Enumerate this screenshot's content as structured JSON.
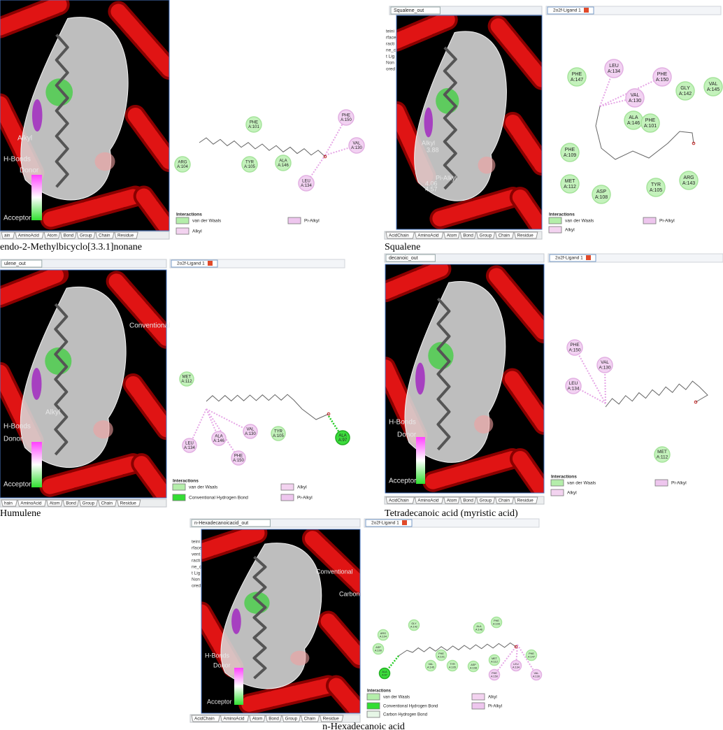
{
  "panels": [
    {
      "caption": "endo-2-Methylbicyclo[3.3.1]nonane",
      "view_labels": [
        "Alkyl",
        "H-Bonds",
        "Donor",
        "Acceptor"
      ],
      "bottom_tabs": [
        "ain",
        "AminoAcid",
        "Atom",
        "Bond",
        "Group",
        "Chain",
        "Residue"
      ],
      "residues": [
        {
          "name": "PHE",
          "id": "A:101",
          "kind": "vdw"
        },
        {
          "name": "PHE",
          "id": "A:150",
          "kind": "alkyl"
        },
        {
          "name": "VAL",
          "id": "A:130",
          "kind": "alkyl"
        },
        {
          "name": "ARG",
          "id": "A:104",
          "kind": "vdw"
        },
        {
          "name": "TYR",
          "id": "A:105",
          "kind": "vdw"
        },
        {
          "name": "ALA",
          "id": "A:146",
          "kind": "vdw"
        },
        {
          "name": "LEU",
          "id": "A:134",
          "kind": "alkyl"
        }
      ],
      "legend_title": "Interactions",
      "legend": [
        {
          "label": "van der Waals",
          "kind": "vdw"
        },
        {
          "label": "Pi-Alkyl",
          "kind": "pialkyl"
        },
        {
          "label": "Alkyl",
          "kind": "alkyl"
        }
      ]
    },
    {
      "caption": "Squalene",
      "view_tab": "Squalene_out",
      "ligand_tab": "2o2f-Ligand 1",
      "side_text": [
        "teini",
        "rface",
        "racti",
        "ne_c",
        "t Lig",
        "Non",
        "ored"
      ],
      "view_labels": [
        "Alkyl",
        "3.88",
        "Pi-Alkyl",
        "4.06",
        "4.57"
      ],
      "bottom_tabs": [
        "AcidChain",
        "AminoAcid",
        "Atom",
        "Bond",
        "Group",
        "Chain",
        "Residue"
      ],
      "residues": [
        {
          "name": "LEU",
          "id": "A:134",
          "kind": "alkyl"
        },
        {
          "name": "PHE",
          "id": "A:147",
          "kind": "vdw"
        },
        {
          "name": "PHE",
          "id": "A:150",
          "kind": "alkyl"
        },
        {
          "name": "VAL",
          "id": "A:130",
          "kind": "alkyl"
        },
        {
          "name": "GLY",
          "id": "A:142",
          "kind": "vdw"
        },
        {
          "name": "VAL",
          "id": "A:145",
          "kind": "vdw"
        },
        {
          "name": "ALA",
          "id": "A:146",
          "kind": "vdw"
        },
        {
          "name": "PHE",
          "id": "A:101",
          "kind": "vdw"
        },
        {
          "name": "PHE",
          "id": "A:109",
          "kind": "vdw"
        },
        {
          "name": "MET",
          "id": "A:112",
          "kind": "vdw"
        },
        {
          "name": "ASP",
          "id": "A:108",
          "kind": "vdw"
        },
        {
          "name": "TYR",
          "id": "A:105",
          "kind": "vdw"
        },
        {
          "name": "ARG",
          "id": "A:143",
          "kind": "vdw"
        }
      ],
      "legend_title": "Interactions",
      "legend": [
        {
          "label": "van der Waals",
          "kind": "vdw"
        },
        {
          "label": "Pi-Alkyl",
          "kind": "pialkyl"
        },
        {
          "label": "Alkyl",
          "kind": "alkyl"
        }
      ]
    },
    {
      "caption": "Humulene",
      "view_tab": "ulene_out",
      "ligand_tab": "2o2f-Ligand 1",
      "view_labels": [
        "Conventional",
        "Alkyl",
        "H-Bonds",
        "Donor",
        "Acceptor"
      ],
      "bottom_tabs": [
        "hain",
        "AminoAcid",
        "Atom",
        "Bond",
        "Group",
        "Chain",
        "Residue"
      ],
      "residues": [
        {
          "name": "MET",
          "id": "A:112",
          "kind": "vdw"
        },
        {
          "name": "LEU",
          "id": "A:134",
          "kind": "alkyl"
        },
        {
          "name": "ALA",
          "id": "A:146",
          "kind": "alkyl"
        },
        {
          "name": "VAL",
          "id": "A:130",
          "kind": "alkyl"
        },
        {
          "name": "TYR",
          "id": "A:105",
          "kind": "vdw"
        },
        {
          "name": "ALA",
          "id": "A:97",
          "kind": "hbond"
        },
        {
          "name": "PHE",
          "id": "A:150",
          "kind": "alkyl"
        }
      ],
      "legend_title": "Interactions",
      "legend": [
        {
          "label": "van der Waals",
          "kind": "vdw"
        },
        {
          "label": "Conventional Hydrogen Bond",
          "kind": "hbond"
        },
        {
          "label": "Alkyl",
          "kind": "alkyl"
        },
        {
          "label": "Pi-Alkyl",
          "kind": "pialkyl"
        }
      ]
    },
    {
      "caption": "Tetradecanoic acid (myristic acid)",
      "view_tab": "decanoic_out",
      "ligand_tab": "2o2f-Ligand 1",
      "view_labels": [
        "H-Bonds",
        "Donor",
        "Acceptor"
      ],
      "bottom_tabs": [
        "AcidChain",
        "AminoAcid",
        "Atom",
        "Bond",
        "Group",
        "Chain",
        "Residue"
      ],
      "residues": [
        {
          "name": "PHE",
          "id": "A:150",
          "kind": "alkyl"
        },
        {
          "name": "VAL",
          "id": "A:130",
          "kind": "alkyl"
        },
        {
          "name": "LEU",
          "id": "A:134",
          "kind": "alkyl"
        },
        {
          "name": "MET",
          "id": "A:112",
          "kind": "vdw"
        }
      ],
      "legend_title": "Interactions",
      "legend": [
        {
          "label": "van der Waals",
          "kind": "vdw"
        },
        {
          "label": "Pi-Alkyl",
          "kind": "pialkyl"
        },
        {
          "label": "Alkyl",
          "kind": "alkyl"
        }
      ]
    },
    {
      "caption": "n-Hexadecanoic acid",
      "view_tab": "n-Hexadecanoicacid_out",
      "ligand_tab": "2o2f-Ligand 1",
      "side_text": [
        "teini",
        "rface",
        "vent",
        "racti",
        "ne_c",
        "t Lig",
        "Non",
        "ored"
      ],
      "view_labels": [
        "Conventional",
        "Carbon",
        "H-Bonds",
        "Donor",
        "Acceptor"
      ],
      "bottom_tabs": [
        "AcidChain",
        "AminoAcid",
        "Atom",
        "Bond",
        "Group",
        "Chain",
        "Residue"
      ],
      "residues": [
        {
          "name": "GLY",
          "id": "A:142",
          "kind": "vdw"
        },
        {
          "name": "ALA",
          "id": "A:146",
          "kind": "vdw"
        },
        {
          "name": "PHE",
          "id": "A:109",
          "kind": "vdw"
        },
        {
          "name": "ARG",
          "id": "A:104",
          "kind": "vdw"
        },
        {
          "name": "ASP",
          "id": "A:100",
          "kind": "vdw"
        },
        {
          "name": "ALA",
          "id": "A:97",
          "kind": "hbond"
        },
        {
          "name": "PHE",
          "id": "A:101",
          "kind": "vdw"
        },
        {
          "name": "VAL",
          "id": "A:145",
          "kind": "vdw"
        },
        {
          "name": "TYR",
          "id": "A:105",
          "kind": "vdw"
        },
        {
          "name": "ASP",
          "id": "A:108",
          "kind": "vdw"
        },
        {
          "name": "MET",
          "id": "A:112",
          "kind": "vdw"
        },
        {
          "name": "PHE",
          "id": "A:150",
          "kind": "alkyl"
        },
        {
          "name": "LEU",
          "id": "A:134",
          "kind": "alkyl"
        },
        {
          "name": "PHE",
          "id": "A:147",
          "kind": "vdw"
        },
        {
          "name": "VAL",
          "id": "A:130",
          "kind": "alkyl"
        }
      ],
      "legend_title": "Interactions",
      "legend": [
        {
          "label": "van der Waals",
          "kind": "vdw"
        },
        {
          "label": "Conventional Hydrogen Bond",
          "kind": "hbond"
        },
        {
          "label": "Carbon Hydrogen Bond",
          "kind": "carbon"
        },
        {
          "label": "Alkyl",
          "kind": "alkyl"
        },
        {
          "label": "Pi-Alkyl",
          "kind": "pialkyl"
        }
      ]
    }
  ]
}
